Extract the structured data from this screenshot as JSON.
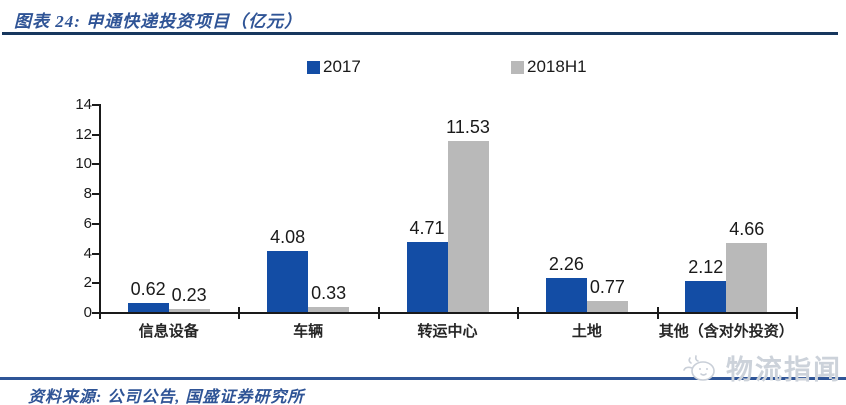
{
  "header": {
    "title": "图表 24: 申通快递投资项目（亿元）"
  },
  "chart_data": {
    "type": "bar",
    "title": "申通快递投资项目（亿元）",
    "categories": [
      "信息设备",
      "车辆",
      "转运中心",
      "土地",
      "其他（含对外投资）"
    ],
    "series": [
      {
        "name": "2017",
        "color": "#134DA5",
        "values": [
          0.62,
          4.08,
          4.71,
          2.26,
          2.12
        ]
      },
      {
        "name": "2018H1",
        "color": "#B9B9B9",
        "values": [
          0.23,
          0.33,
          11.53,
          0.77,
          4.66
        ]
      }
    ],
    "value_labels": [
      "0.62",
      "0.23",
      "4.08",
      "0.33",
      "4.71",
      "11.53",
      "2.26",
      "0.77",
      "2.12",
      "4.66"
    ],
    "ylim": [
      0,
      14
    ],
    "ytick_step": 2,
    "yticks": [
      0,
      2,
      4,
      6,
      8,
      10,
      12,
      14
    ],
    "grid": false,
    "legend_position": "top",
    "xlabel": "",
    "ylabel": ""
  },
  "footer": {
    "source": "资料来源: 公司公告, 国盛证券研究所"
  },
  "watermark": {
    "text": "物流指闻"
  },
  "colors": {
    "bar_2017": "#134DA5",
    "bar_2018h1": "#B9B9B9",
    "title_text": "#2F5496",
    "title_rule": "#17375E",
    "bottom_rule": "#2F5597",
    "axis": "#1a1a1a",
    "watermark": "#ccd2da"
  }
}
